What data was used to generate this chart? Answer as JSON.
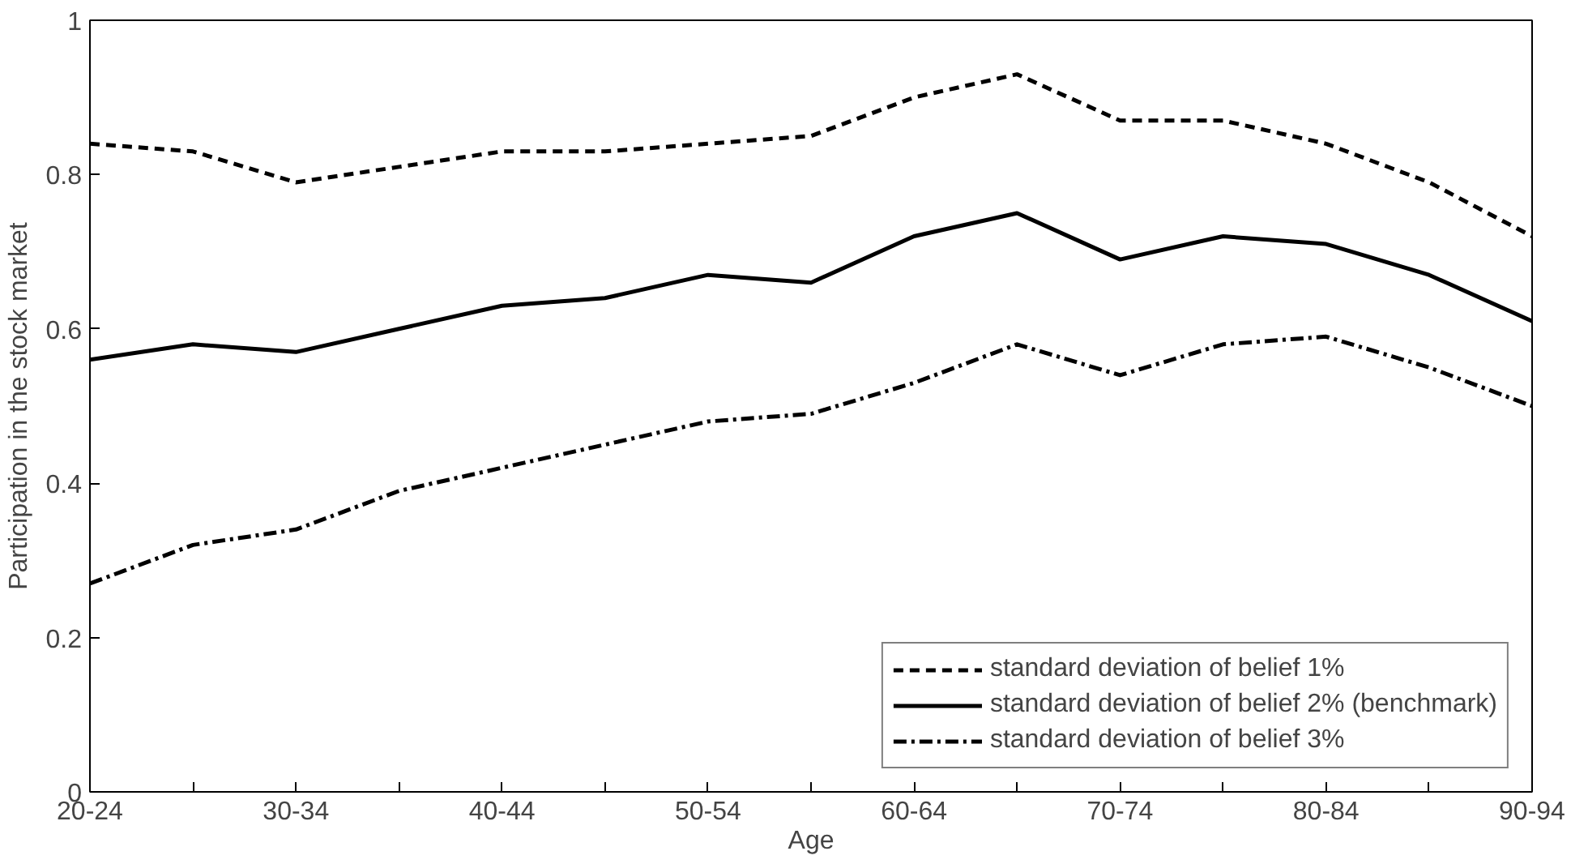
{
  "chart_data": {
    "type": "line",
    "xlabel": "Age",
    "ylabel": "Participation in the stock market",
    "categories": [
      "20-24",
      null,
      "30-34",
      null,
      "40-44",
      null,
      "50-54",
      null,
      "60-64",
      null,
      "70-74",
      null,
      "80-84",
      null,
      "90-94"
    ],
    "ylim": [
      0,
      1
    ],
    "yticks": [
      0,
      0.2,
      0.4,
      0.6,
      0.8,
      1
    ],
    "grid": false,
    "legend": "bottom right",
    "marker": "none",
    "series": [
      {
        "name": "standard deviation of belief 1%",
        "color": "#000000",
        "line_style": "dashed",
        "values": [
          0.84,
          0.83,
          0.79,
          0.81,
          0.83,
          0.83,
          0.84,
          0.85,
          0.9,
          0.93,
          0.87,
          0.87,
          0.84,
          0.79,
          0.72
        ]
      },
      {
        "name": "standard deviation of belief 2% (benchmark)",
        "color": "#000000",
        "line_style": "solid",
        "values": [
          0.56,
          0.58,
          0.57,
          0.6,
          0.63,
          0.64,
          0.67,
          0.66,
          0.72,
          0.75,
          0.69,
          0.72,
          0.71,
          0.67,
          0.61
        ]
      },
      {
        "name": "standard deviation of belief 3%",
        "color": "#000000",
        "line_style": "dashdot",
        "values": [
          0.27,
          0.32,
          0.34,
          0.39,
          0.42,
          0.45,
          0.48,
          0.49,
          0.53,
          0.58,
          0.54,
          0.58,
          0.59,
          0.55,
          0.5
        ]
      }
    ]
  }
}
